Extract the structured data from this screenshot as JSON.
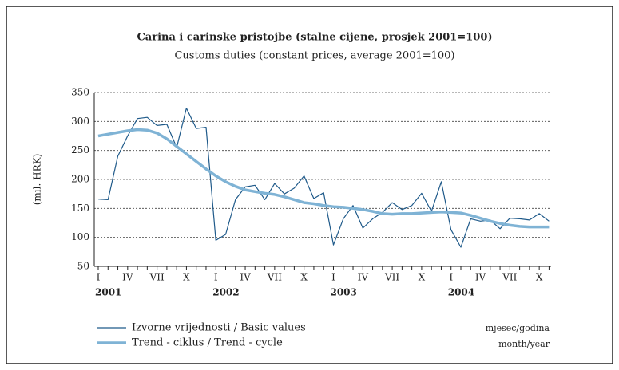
{
  "chart_data": {
    "type": "line",
    "title": "Carina i carinske pristojbe (stalne cijene, prosjek 2001=100)",
    "subtitle": "Customs duties (constant prices, average 2001=100)",
    "y_label": "(mil. HRK)",
    "x_label": [
      "mjesec/godina",
      "month/year"
    ],
    "categories": [
      "I",
      null,
      null,
      "IV",
      null,
      null,
      "VII",
      null,
      null,
      "X",
      null,
      null,
      "I",
      null,
      null,
      "IV",
      null,
      null,
      "VII",
      null,
      null,
      "X",
      null,
      null,
      "I",
      null,
      null,
      "IV",
      null,
      null,
      "VII",
      null,
      null,
      "X",
      null,
      null,
      "I",
      null,
      null,
      "IV",
      null,
      null,
      "VII",
      null,
      null,
      "X",
      null
    ],
    "years": [
      "2001",
      "2002",
      "2003",
      "2004"
    ],
    "ylim": [
      50,
      350
    ],
    "yticks": [
      50,
      100,
      150,
      200,
      250,
      300,
      350
    ],
    "grid": true,
    "series": [
      {
        "name": "Izvorne vrijednosti / Basic values",
        "color": "#1f5a8a",
        "width": 1.2,
        "values": [
          166,
          165,
          240,
          275,
          305,
          307,
          293,
          295,
          255,
          323,
          288,
          290,
          95,
          105,
          165,
          187,
          190,
          165,
          193,
          175,
          185,
          206,
          167,
          177,
          87,
          132,
          155,
          116,
          132,
          143,
          160,
          148,
          155,
          176,
          145,
          196,
          113,
          83,
          132,
          128,
          130,
          115,
          133,
          132,
          130,
          141,
          128
        ]
      },
      {
        "name": "Trend - ciklus / Trend - cycle",
        "color": "#7fb3d5",
        "width": 3.5,
        "values": [
          275,
          278,
          281,
          284,
          286,
          285,
          280,
          270,
          257,
          244,
          231,
          218,
          206,
          196,
          188,
          182,
          179,
          176,
          174,
          170,
          165,
          160,
          158,
          155,
          153,
          152,
          150,
          148,
          145,
          141,
          140,
          141,
          141,
          142,
          143,
          144,
          143,
          142,
          138,
          133,
          128,
          124,
          121,
          119,
          118,
          118,
          118
        ]
      }
    ]
  }
}
